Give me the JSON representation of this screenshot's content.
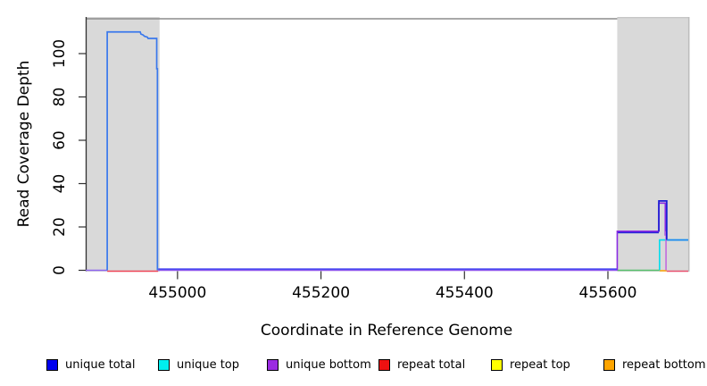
{
  "figure": {
    "ylabel": "Read Coverage Depth",
    "xlabel": "Coordinate in Reference Genome"
  },
  "legend": {
    "items": [
      {
        "label": "unique total",
        "color": "#0000ee"
      },
      {
        "label": "unique top",
        "color": "#00eeee"
      },
      {
        "label": "unique bottom",
        "color": "#9b2be2"
      },
      {
        "label": "repeat total",
        "color": "#ee1111"
      },
      {
        "label": "repeat top",
        "color": "#ffff00"
      },
      {
        "label": "repeat bottom",
        "color": "#ffa500"
      }
    ]
  },
  "chart_data": {
    "type": "line",
    "title": "",
    "xlabel": "Coordinate in Reference Genome",
    "ylabel": "Read Coverage Depth",
    "xlim": [
      454872,
      455712
    ],
    "ylim": [
      0,
      116.9
    ],
    "xticks": [
      455000,
      455200,
      455400,
      455600
    ],
    "yticks": [
      0,
      20,
      40,
      60,
      80,
      100
    ],
    "grid": false,
    "legend_position": "bottom",
    "shaded_regions": [
      {
        "name": "left-target-region",
        "x0": 454872,
        "x1": 454975,
        "color": "#d9d9d9"
      },
      {
        "name": "right-target-region",
        "x0": 455613,
        "x1": 455712,
        "color": "#d9d9d9"
      }
    ],
    "series": [
      {
        "name": "unique-bottom-baseline-left",
        "color": "#8d64ee",
        "width": 1.5,
        "points": [
          [
            454872,
            0
          ],
          [
            454902,
            0
          ]
        ]
      },
      {
        "name": "unique-bottom-baseline-mid",
        "color": "#8d55ee",
        "width": 1.5,
        "points": [
          [
            454973,
            0
          ],
          [
            455613,
            0
          ]
        ]
      },
      {
        "name": "repeat-total-baseline-left",
        "color": "#ee4455",
        "width": 1.5,
        "points": [
          [
            454902,
            -0.4
          ],
          [
            454973,
            -0.4
          ]
        ]
      },
      {
        "name": "unique-total-baseline-mid",
        "color": "#3b3bf0",
        "width": 1.5,
        "points": [
          [
            454973,
            0.55
          ],
          [
            455613,
            0.55
          ]
        ]
      },
      {
        "name": "unique-top-baseline-right",
        "color": "#57c06c",
        "width": 1.5,
        "points": [
          [
            455613,
            0
          ],
          [
            455672,
            0
          ]
        ]
      },
      {
        "name": "repeat-bottom-baseline-right",
        "color": "#ffa500",
        "width": 1.5,
        "points": [
          [
            455672,
            -0.2
          ],
          [
            455682,
            -0.2
          ]
        ]
      },
      {
        "name": "repeat-total-baseline-right",
        "color": "#e8506e",
        "width": 1.5,
        "points": [
          [
            455682,
            -0.4
          ],
          [
            455712,
            -0.4
          ]
        ]
      },
      {
        "name": "unique-top-line",
        "color": "#00dcee",
        "width": 1.6,
        "points": [
          [
            455672,
            0
          ],
          [
            455672,
            14
          ],
          [
            455712,
            14
          ]
        ]
      },
      {
        "name": "unique-total-18-level",
        "color": "#2626d8",
        "width": 1.6,
        "points": [
          [
            455613,
            17.4
          ],
          [
            455671,
            17.4
          ]
        ]
      },
      {
        "name": "unique-bottom-right",
        "color": "#8a2be2",
        "width": 1.6,
        "points": [
          [
            455613,
            0
          ],
          [
            455613,
            18
          ],
          [
            455671,
            18
          ],
          [
            455671,
            31
          ],
          [
            455680,
            31
          ],
          [
            455680,
            16
          ]
        ]
      },
      {
        "name": "unique-bottom-drop",
        "color": "#c06ade",
        "width": 1.6,
        "points": [
          [
            455681,
            18
          ],
          [
            455681,
            0
          ]
        ]
      },
      {
        "name": "unique-total-left-peak",
        "color": "#3a78ec",
        "width": 1.7,
        "points": [
          [
            454902,
            0
          ],
          [
            454902,
            110
          ],
          [
            454948,
            110
          ],
          [
            454949,
            109
          ],
          [
            454952,
            108.6
          ],
          [
            454954,
            108
          ],
          [
            454958,
            107.6
          ],
          [
            454959,
            107
          ],
          [
            454971,
            107
          ],
          [
            454971,
            93
          ],
          [
            454972,
            93
          ],
          [
            454972,
            0
          ]
        ]
      },
      {
        "name": "unique-total-spike",
        "color": "#1a1ad4",
        "width": 1.7,
        "points": [
          [
            455671,
            18
          ],
          [
            455671,
            32
          ],
          [
            455682,
            32
          ],
          [
            455682,
            14
          ]
        ]
      },
      {
        "name": "unique-total-right-14",
        "color": "#1e86f0",
        "width": 1.7,
        "points": [
          [
            455682,
            14
          ],
          [
            455712,
            14
          ]
        ]
      }
    ]
  }
}
